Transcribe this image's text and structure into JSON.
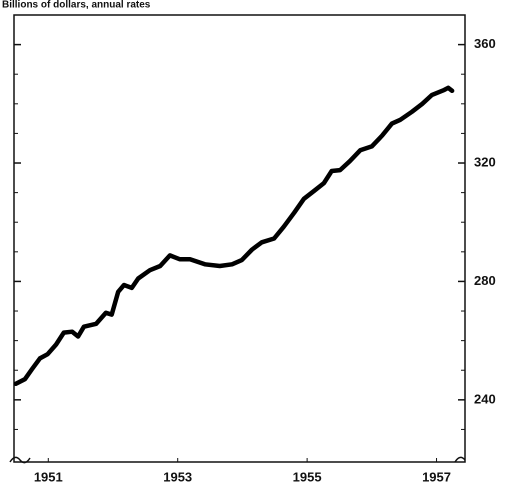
{
  "chart_data": {
    "type": "line",
    "ylabel": "Billions of dollars, annual rates",
    "x": [
      1951.0,
      1951.14,
      1951.25,
      1951.37,
      1951.49,
      1951.62,
      1951.74,
      1951.87,
      1951.96,
      1952.05,
      1952.24,
      1952.39,
      1952.48,
      1952.58,
      1952.67,
      1952.79,
      1952.89,
      1953.07,
      1953.23,
      1953.38,
      1953.53,
      1953.69,
      1953.92,
      1954.15,
      1954.34,
      1954.49,
      1954.65,
      1954.8,
      1954.99,
      1955.14,
      1955.3,
      1955.45,
      1955.61,
      1955.76,
      1955.88,
      1956.01,
      1956.16,
      1956.32,
      1956.5,
      1956.66,
      1956.81,
      1956.94,
      1957.12,
      1957.28,
      1957.43,
      1957.62,
      1957.68,
      1957.74
    ],
    "series": [
      {
        "color": "#000000",
        "values": [
          245.4,
          247,
          250.4,
          254,
          255.4,
          258.7,
          262.7,
          263,
          261.4,
          264.7,
          265.7,
          269.4,
          268.8,
          276.5,
          278.8,
          277.8,
          281,
          283.8,
          285.2,
          288.8,
          287.5,
          287.5,
          285.8,
          285.2,
          285.8,
          287.2,
          290.8,
          293.2,
          294.5,
          298.5,
          303.2,
          307.9,
          310.6,
          313.2,
          317.3,
          317.6,
          320.6,
          324.3,
          325.6,
          329.3,
          333.3,
          334.6,
          337.3,
          340,
          343,
          344.7,
          345.4,
          344.4
        ]
      }
    ],
    "xlim": [
      1950.97,
      1957.94
    ],
    "xticks": [
      {
        "value": 1951.5,
        "label": "1951"
      },
      {
        "value": 1953.5,
        "label": "1953"
      },
      {
        "value": 1955.5,
        "label": "1955"
      },
      {
        "value": 1957.5,
        "label": "1957"
      }
    ],
    "ylim": [
      219,
      370
    ],
    "yticks": [
      240,
      280,
      320,
      360
    ],
    "yminor_ticks": [
      230,
      250,
      260,
      270,
      290,
      300,
      310,
      330,
      340,
      350
    ],
    "grid": false
  }
}
